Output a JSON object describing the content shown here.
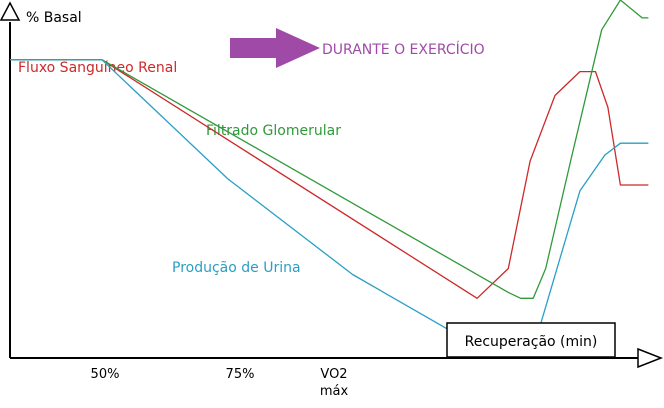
{
  "chart_data": {
    "type": "line",
    "ylabel": "% Basal",
    "annotation": "DURANTE O EXERCÍCIO",
    "recovery_label": "Recuperação (min)",
    "x_ticks": [
      "50%",
      "75%",
      "VO2",
      "máx"
    ],
    "series": [
      {
        "name": "Fluxo Sanguíneo Renal",
        "color": "#cc2a2a",
        "values": [
          [
            0,
            50
          ],
          [
            2.95,
            50
          ],
          [
            15.0,
            10
          ],
          [
            16.0,
            15
          ],
          [
            16.7,
            33
          ],
          [
            17.5,
            44
          ],
          [
            18.3,
            48
          ],
          [
            18.8,
            48
          ],
          [
            19.2,
            42
          ],
          [
            19.6,
            29
          ],
          [
            20.0,
            29
          ],
          [
            20.5,
            29
          ]
        ]
      },
      {
        "name": "Filtrado Glomerular",
        "color": "#2f9a3a",
        "values": [
          [
            0,
            50
          ],
          [
            2.95,
            50
          ],
          [
            16.0,
            11
          ],
          [
            16.4,
            10
          ],
          [
            16.8,
            10
          ],
          [
            17.2,
            15
          ],
          [
            18.0,
            33
          ],
          [
            19.0,
            55
          ],
          [
            19.6,
            60
          ],
          [
            20.3,
            57
          ],
          [
            20.5,
            57
          ]
        ]
      },
      {
        "name": "Produção de Urina",
        "color": "#2a9fc4",
        "values": [
          [
            0,
            50
          ],
          [
            2.95,
            50
          ],
          [
            7.0,
            30
          ],
          [
            11.0,
            14
          ],
          [
            14.0,
            5
          ],
          [
            17.0,
            5
          ],
          [
            18.3,
            28
          ],
          [
            19.1,
            34
          ],
          [
            19.6,
            36
          ],
          [
            20.5,
            36
          ]
        ]
      }
    ],
    "xlim": [
      0,
      21
    ],
    "ylim": [
      0,
      60
    ]
  }
}
